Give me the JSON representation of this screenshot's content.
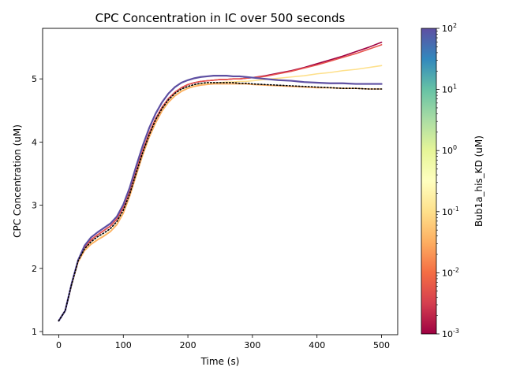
{
  "chart_data": {
    "type": "line",
    "title": "CPC Concentration in IC over 500 seconds",
    "xlabel": "Time (s)",
    "ylabel": "CPC Concentration (uM)",
    "xlim": [
      -25,
      525
    ],
    "ylim": [
      0.95,
      5.8
    ],
    "xticks": [
      0,
      100,
      200,
      300,
      400,
      500
    ],
    "yticks": [
      1,
      2,
      3,
      4,
      5
    ],
    "grid": false,
    "colorbar": {
      "label": "Bub1a_his_KD (uM)",
      "scale": "log",
      "range": [
        0.001,
        100
      ],
      "tick_labels": [
        {
          "base": "10",
          "exp": "-3"
        },
        {
          "base": "10",
          "exp": "-2"
        },
        {
          "base": "10",
          "exp": "-1"
        },
        {
          "base": "10",
          "exp": "0"
        },
        {
          "base": "10",
          "exp": "1"
        },
        {
          "base": "10",
          "exp": "2"
        }
      ],
      "colormap_stops": [
        "#9e0142",
        "#d53e4f",
        "#f46d43",
        "#fdae61",
        "#fee08b",
        "#ffffbf",
        "#e6f598",
        "#abdda4",
        "#66c2a5",
        "#3288bd",
        "#5e4fa2"
      ]
    },
    "x": [
      0,
      10,
      20,
      30,
      40,
      50,
      60,
      70,
      80,
      90,
      100,
      110,
      120,
      130,
      140,
      150,
      160,
      170,
      180,
      190,
      200,
      210,
      220,
      230,
      240,
      250,
      260,
      270,
      280,
      290,
      300,
      320,
      340,
      360,
      380,
      400,
      420,
      440,
      460,
      480,
      500
    ],
    "series": [
      {
        "color": "#9e0142",
        "values": [
          1.17,
          1.33,
          1.75,
          2.12,
          2.33,
          2.45,
          2.53,
          2.6,
          2.67,
          2.78,
          2.96,
          3.22,
          3.55,
          3.86,
          4.14,
          4.37,
          4.55,
          4.69,
          4.79,
          4.86,
          4.91,
          4.94,
          4.96,
          4.97,
          4.98,
          4.99,
          4.99,
          5.0,
          5.0,
          5.01,
          5.02,
          5.05,
          5.09,
          5.13,
          5.18,
          5.24,
          5.3,
          5.36,
          5.43,
          5.5,
          5.58
        ]
      },
      {
        "color": "#e8554e",
        "values": [
          1.17,
          1.33,
          1.75,
          2.12,
          2.33,
          2.45,
          2.53,
          2.6,
          2.67,
          2.78,
          2.96,
          3.22,
          3.55,
          3.86,
          4.14,
          4.37,
          4.55,
          4.69,
          4.79,
          4.86,
          4.91,
          4.94,
          4.96,
          4.97,
          4.98,
          4.99,
          4.99,
          5.0,
          5.0,
          5.01,
          5.02,
          5.04,
          5.08,
          5.12,
          5.17,
          5.22,
          5.28,
          5.34,
          5.4,
          5.47,
          5.54
        ]
      },
      {
        "color": "#fee08b",
        "values": [
          1.17,
          1.33,
          1.74,
          2.1,
          2.29,
          2.39,
          2.46,
          2.52,
          2.59,
          2.7,
          2.88,
          3.15,
          3.48,
          3.8,
          4.08,
          4.31,
          4.5,
          4.64,
          4.74,
          4.81,
          4.86,
          4.89,
          4.91,
          4.92,
          4.93,
          4.94,
          4.95,
          4.95,
          4.96,
          4.96,
          4.97,
          4.99,
          5.01,
          5.03,
          5.05,
          5.08,
          5.1,
          5.13,
          5.15,
          5.18,
          5.21
        ]
      },
      {
        "color": "#fdae61",
        "values": [
          1.17,
          1.33,
          1.74,
          2.1,
          2.28,
          2.38,
          2.45,
          2.51,
          2.58,
          2.69,
          2.87,
          3.14,
          3.47,
          3.79,
          4.07,
          4.3,
          4.49,
          4.63,
          4.73,
          4.8,
          4.85,
          4.88,
          4.9,
          4.91,
          4.92,
          4.92,
          4.92,
          4.92,
          4.92,
          4.92,
          4.91,
          4.9,
          4.89,
          4.88,
          4.87,
          4.86,
          4.86,
          4.85,
          4.85,
          4.84,
          4.84
        ]
      },
      {
        "color": "#5e4fa2",
        "values": [
          1.17,
          1.33,
          1.76,
          2.13,
          2.36,
          2.49,
          2.57,
          2.64,
          2.71,
          2.82,
          3.01,
          3.28,
          3.62,
          3.94,
          4.22,
          4.45,
          4.63,
          4.77,
          4.87,
          4.94,
          4.98,
          5.01,
          5.03,
          5.04,
          5.05,
          5.05,
          5.05,
          5.04,
          5.04,
          5.03,
          5.02,
          5.0,
          4.98,
          4.97,
          4.95,
          4.94,
          4.93,
          4.93,
          4.92,
          4.92,
          4.92
        ]
      },
      {
        "color": "#000000",
        "dashed": true,
        "values": [
          1.17,
          1.33,
          1.75,
          2.12,
          2.31,
          2.42,
          2.5,
          2.56,
          2.63,
          2.74,
          2.92,
          3.18,
          3.51,
          3.83,
          4.11,
          4.35,
          4.53,
          4.67,
          4.77,
          4.84,
          4.88,
          4.91,
          4.93,
          4.94,
          4.94,
          4.94,
          4.94,
          4.94,
          4.93,
          4.93,
          4.92,
          4.91,
          4.9,
          4.89,
          4.88,
          4.87,
          4.86,
          4.85,
          4.85,
          4.84,
          4.84
        ]
      }
    ]
  }
}
